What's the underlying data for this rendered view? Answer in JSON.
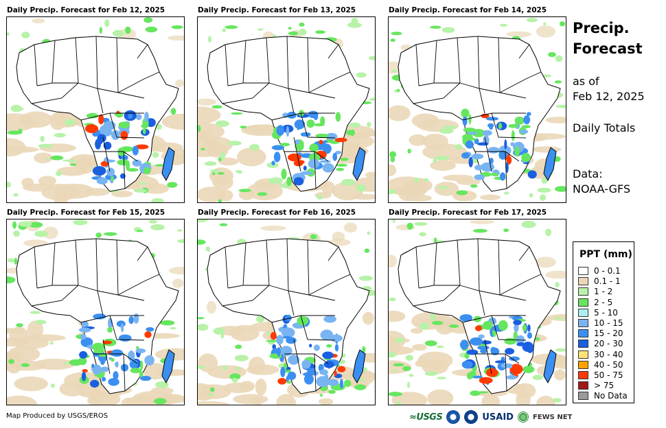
{
  "panels": [
    {
      "title": "Daily Precip. Forecast for Feb 12, 2025"
    },
    {
      "title": "Daily Precip. Forecast for Feb 13, 2025"
    },
    {
      "title": "Daily Precip. Forecast for Feb 14, 2025"
    },
    {
      "title": "Daily Precip. Forecast for Feb 15, 2025"
    },
    {
      "title": "Daily Precip. Forecast for Feb 16, 2025"
    },
    {
      "title": "Daily Precip. Forecast for Feb 17, 2025"
    }
  ],
  "side": {
    "title_line1": "Precip.",
    "title_line2": "Forecast",
    "asof_line1": "as of",
    "asof_line2": "Feb 12, 2025",
    "totals": "Daily Totals",
    "data_line1": "Data:",
    "data_line2": "NOAA-GFS"
  },
  "legend": {
    "title": "PPT (mm)",
    "items": [
      {
        "label": "0 - 0.1",
        "color": "#ffffff"
      },
      {
        "label": "0.1 - 1",
        "color": "#ead7b7"
      },
      {
        "label": "1 - 2",
        "color": "#b7f2a8"
      },
      {
        "label": "2 - 5",
        "color": "#66e65f"
      },
      {
        "label": "5 - 10",
        "color": "#aeeef2"
      },
      {
        "label": "10 - 15",
        "color": "#79b4f2"
      },
      {
        "label": "15 - 20",
        "color": "#3b8ff0"
      },
      {
        "label": "20 - 30",
        "color": "#1a5fe0"
      },
      {
        "label": "30 - 40",
        "color": "#ffe27a"
      },
      {
        "label": "40 - 50",
        "color": "#ffa200"
      },
      {
        "label": "50 - 75",
        "color": "#ff3a00"
      },
      {
        "label": "> 75",
        "color": "#a01818"
      },
      {
        "label": "No Data",
        "color": "#9a9a9a"
      }
    ]
  },
  "footer": {
    "credit": "Map Produced by USGS/EROS",
    "logo_usgs": "≈USGS",
    "logo_usaid": "USAID",
    "logo_fews": "FEWS NET"
  }
}
